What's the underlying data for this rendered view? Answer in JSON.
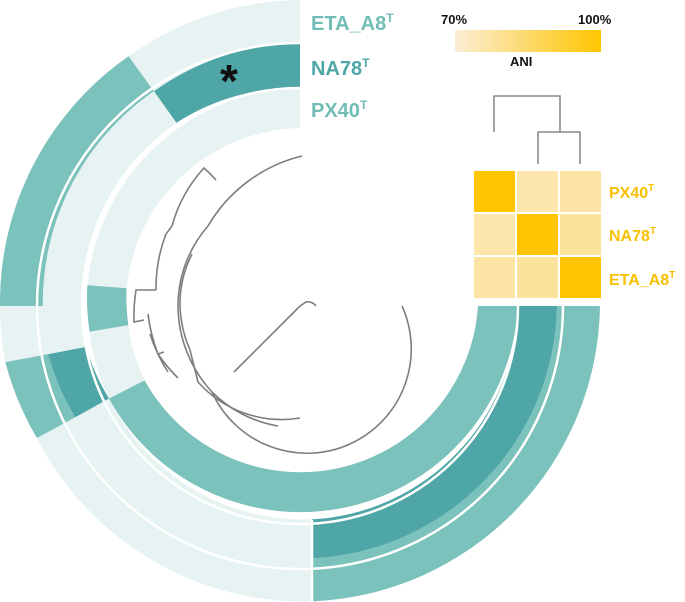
{
  "colors": {
    "light": "#e7f3f2",
    "mid": "#7bc1bc",
    "dark": "#4fa6a6",
    "label_teal": "#71bdb6",
    "ani_low": "#fbeed6",
    "ani_high": "#fec500",
    "ani_label": "#f7c000",
    "tree": "#7d7d7d",
    "marker": "#111111"
  },
  "rings": [
    {
      "name": "ETA_A8",
      "sup": "T"
    },
    {
      "name": "NA78",
      "sup": "T",
      "marked": true
    },
    {
      "name": "PX40",
      "sup": "T"
    }
  ],
  "marker": {
    "text": "*"
  },
  "ani": {
    "scale_label": "ANI",
    "scale_min_label": "70%",
    "scale_max_label": "100%",
    "scale_min": 70,
    "scale_max": 100,
    "rows": [
      {
        "name": "PX40",
        "sup": "T"
      },
      {
        "name": "NA78",
        "sup": "T"
      },
      {
        "name": "ETA_A8",
        "sup": "T"
      }
    ],
    "matrix": [
      [
        100,
        76,
        77
      ],
      [
        76,
        100,
        78
      ],
      [
        77,
        78,
        100
      ]
    ]
  }
}
